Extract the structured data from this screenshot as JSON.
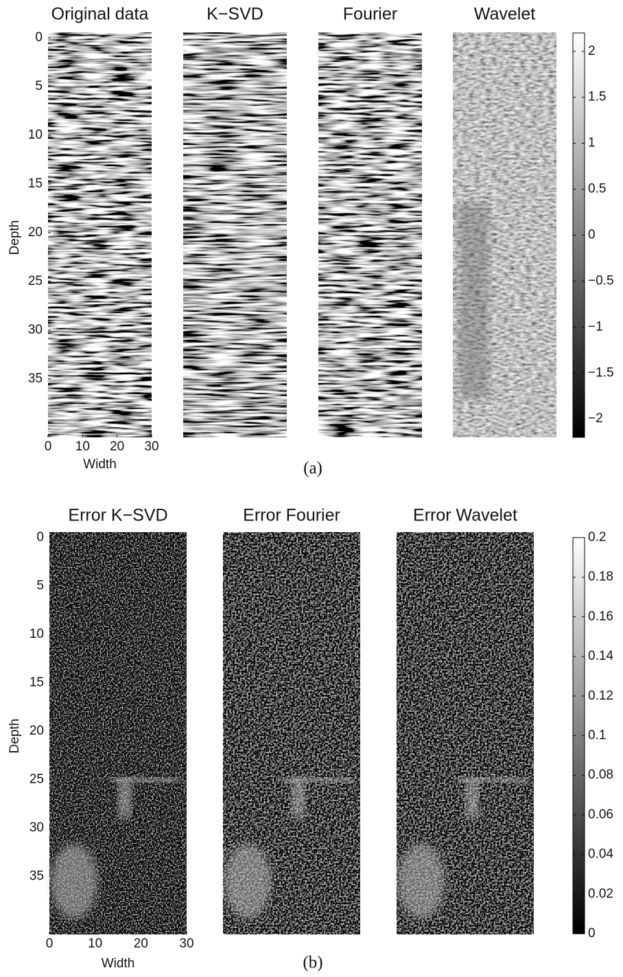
{
  "chart_data": [
    {
      "type": "image",
      "label": "(a)",
      "panels": [
        "Original data",
        "K−SVD",
        "Fourier",
        "Wavelet"
      ],
      "xlabel": "Width",
      "ylabel": "Depth",
      "xlim": [
        0,
        30
      ],
      "xticks": [
        0,
        10,
        20,
        30
      ],
      "ylim": [
        0,
        41
      ],
      "yticks": [
        0,
        5,
        10,
        15,
        20,
        25,
        30,
        35
      ],
      "clim": [
        -2.2,
        2.2
      ],
      "cticks": [
        {
          "value": -2,
          "label": "−2"
        },
        {
          "value": -1.5,
          "label": "−1.5"
        },
        {
          "value": -1,
          "label": "−1"
        },
        {
          "value": -0.5,
          "label": "−0.5"
        },
        0,
        0.5,
        1,
        1.5,
        2
      ]
    },
    {
      "type": "image",
      "label": "(b)",
      "panels": [
        "Error K−SVD",
        "Error Fourier",
        "Error Wavelet"
      ],
      "xlabel": "Width",
      "ylabel": "Depth",
      "xlim": [
        0,
        30
      ],
      "xticks": [
        0,
        10,
        20,
        30
      ],
      "ylim": [
        0,
        41
      ],
      "yticks": [
        0,
        5,
        10,
        15,
        20,
        25,
        30,
        35
      ],
      "clim": [
        0,
        0.2
      ],
      "cticks": [
        0,
        0.02,
        0.04,
        0.06,
        0.08,
        0.1,
        0.12,
        0.14,
        0.16,
        0.18,
        0.2
      ]
    }
  ]
}
